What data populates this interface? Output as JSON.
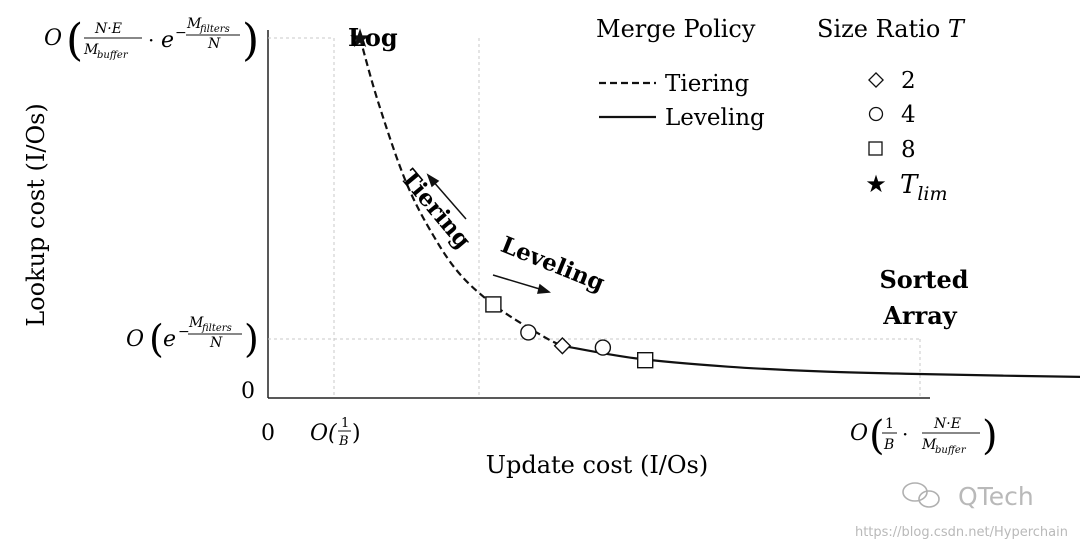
{
  "chart_data": {
    "type": "line",
    "x_label": "Update cost (I/Os)",
    "y_label": "Lookup cost (I/Os)",
    "x_ticks": {
      "zero": "0",
      "min": {
        "prefix": "O(",
        "num": "1",
        "den": "B",
        "suffix": ")"
      },
      "max": {
        "prefix": "O",
        "a_num": "1",
        "a_den": "B",
        "dot": "·",
        "b_num": "N·E",
        "b_den": "M",
        "b_den_sub": "buffer"
      }
    },
    "y_ticks": {
      "zero": "0",
      "min": {
        "prefix": "O",
        "base": "e",
        "exp_sign": "−",
        "exp_num": "M",
        "exp_num_sub": "filters",
        "exp_den": "N"
      },
      "max": {
        "prefix": "O",
        "frac_num": "N·E",
        "frac_den": "M",
        "frac_den_sub": "buffer",
        "dot": "·",
        "base": "e",
        "exp_sign": "−",
        "exp_num": "M",
        "exp_num_sub": "filters",
        "exp_den": "N"
      }
    },
    "x_range": [
      0,
      1
    ],
    "y_range": [
      0,
      1
    ],
    "series": [
      {
        "name": "Tiering",
        "style": "dashed",
        "x": [
          0.1,
          0.12,
          0.15,
          0.18,
          0.21,
          0.25,
          0.3,
          0.32
        ],
        "y": [
          1.0,
          0.82,
          0.6,
          0.45,
          0.34,
          0.25,
          0.17,
          0.145
        ]
      },
      {
        "name": "Leveling",
        "style": "solid",
        "x": [
          0.32,
          0.4,
          0.5,
          0.6,
          0.7,
          0.8,
          0.9,
          1.0
        ],
        "y": [
          0.145,
          0.11,
          0.087,
          0.074,
          0.067,
          0.062,
          0.058,
          0.055
        ]
      }
    ],
    "markers": [
      {
        "symbol": "star",
        "x": 0.1,
        "y": 1.0,
        "annotation": "Log"
      },
      {
        "symbol": "square",
        "x": 0.245,
        "y": 0.26
      },
      {
        "symbol": "circle",
        "x": 0.283,
        "y": 0.182
      },
      {
        "symbol": "diamond",
        "x": 0.32,
        "y": 0.145
      },
      {
        "symbol": "circle",
        "x": 0.364,
        "y": 0.14
      },
      {
        "symbol": "square",
        "x": 0.41,
        "y": 0.105
      },
      {
        "symbol": "star",
        "x": 1.0,
        "y": 0.055,
        "annotation": "Sorted Array"
      }
    ],
    "annotations": {
      "log": "Log",
      "sorted_array_line1": "Sorted",
      "sorted_array_line2": "Array",
      "tiering_arrow": "Tiering",
      "leveling_arrow": "Leveling"
    },
    "legend_policy": {
      "title": "Merge Policy",
      "entries": [
        {
          "label": "Tiering",
          "style": "dashed"
        },
        {
          "label": "Leveling",
          "style": "solid"
        }
      ]
    },
    "legend_ratio": {
      "title_text": "Size Ratio ",
      "title_symbol": "T",
      "entries": [
        {
          "symbol": "diamond",
          "label": "2"
        },
        {
          "symbol": "circle",
          "label": "4"
        },
        {
          "symbol": "square",
          "label": "8"
        },
        {
          "symbol": "star",
          "label": "T",
          "label_sub": "lim"
        }
      ]
    },
    "legend_placement": "top-right",
    "grid": false
  },
  "watermark": {
    "brand": "QTech",
    "url": "https://blog.csdn.net/Hyperchain"
  }
}
